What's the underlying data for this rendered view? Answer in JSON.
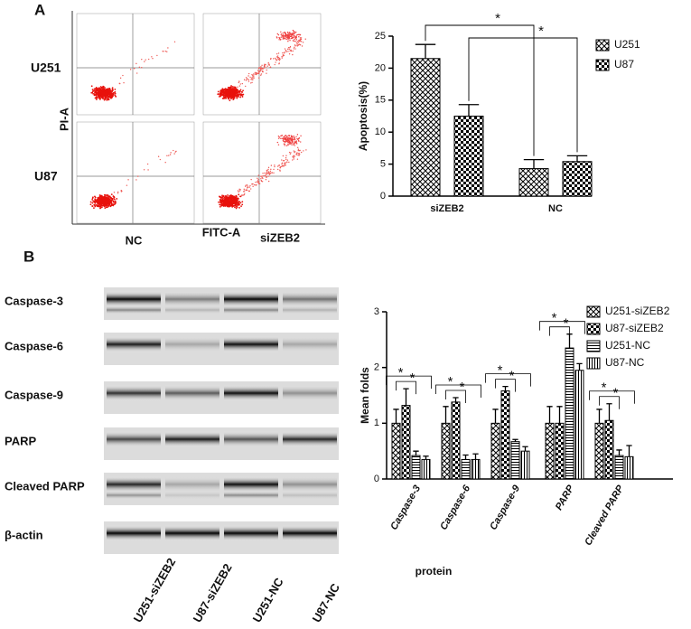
{
  "panel_labels": [
    "A",
    "B"
  ],
  "flow": {
    "rows": [
      "U251",
      "U87"
    ],
    "y_axis": "PI-A",
    "x_axis": "FITC-A",
    "columns": [
      "NC",
      "siZEB2"
    ]
  },
  "blot": {
    "proteins": [
      "Caspase-3",
      "Caspase-6",
      "Caspase-9",
      "PARP",
      "Cleaved PARP",
      "β-actin"
    ],
    "lanes": [
      "U251-siZEB2",
      "U87-siZEB2",
      "U251-NC",
      "U87-NC"
    ]
  },
  "chart_data": [
    {
      "type": "bar",
      "ylabel": "Apoptosis(%)",
      "categories": [
        "siZEB2",
        "NC"
      ],
      "series": [
        {
          "name": "U251",
          "color": "#000000",
          "values": [
            21.5,
            4.3
          ],
          "errors": [
            2.2,
            1.4
          ]
        },
        {
          "name": "U87",
          "color": "#000000",
          "values": [
            12.5,
            5.4
          ],
          "errors": [
            1.8,
            0.9
          ]
        }
      ],
      "ylim": [
        0,
        25
      ],
      "yticks": [
        0,
        5,
        10,
        15,
        20,
        25
      ],
      "annotations": [
        "*",
        "*"
      ]
    },
    {
      "type": "bar",
      "ylabel": "Mean folds",
      "xlabel": "protein",
      "categories": [
        "Caspase-3",
        "Caspase-6",
        "Caspase-9",
        "PARP",
        "Cleaved PARP"
      ],
      "series": [
        {
          "name": "U251-siZEB2",
          "color": "#000000",
          "values": [
            1.0,
            1.0,
            1.0,
            1.0,
            1.0
          ],
          "errors": [
            0.25,
            0.3,
            0.25,
            0.3,
            0.25
          ]
        },
        {
          "name": "U87-siZEB2",
          "color": "#000000",
          "values": [
            1.32,
            1.38,
            1.58,
            1.0,
            1.05
          ],
          "errors": [
            0.3,
            0.08,
            0.08,
            0.3,
            0.3
          ]
        },
        {
          "name": "U251-NC",
          "color": "#000000",
          "values": [
            0.42,
            0.35,
            0.67,
            2.35,
            0.42
          ],
          "errors": [
            0.08,
            0.08,
            0.04,
            0.25,
            0.1
          ]
        },
        {
          "name": "U87-NC",
          "color": "#000000",
          "values": [
            0.35,
            0.35,
            0.5,
            1.95,
            0.4
          ],
          "errors": [
            0.06,
            0.1,
            0.08,
            0.12,
            0.2
          ]
        }
      ],
      "ylim": [
        0,
        3
      ],
      "yticks": [
        0,
        1,
        2,
        3
      ],
      "annotations": [
        "*",
        "*",
        "*",
        "*",
        "*",
        "*",
        "*",
        "*",
        "*",
        "*"
      ]
    }
  ]
}
